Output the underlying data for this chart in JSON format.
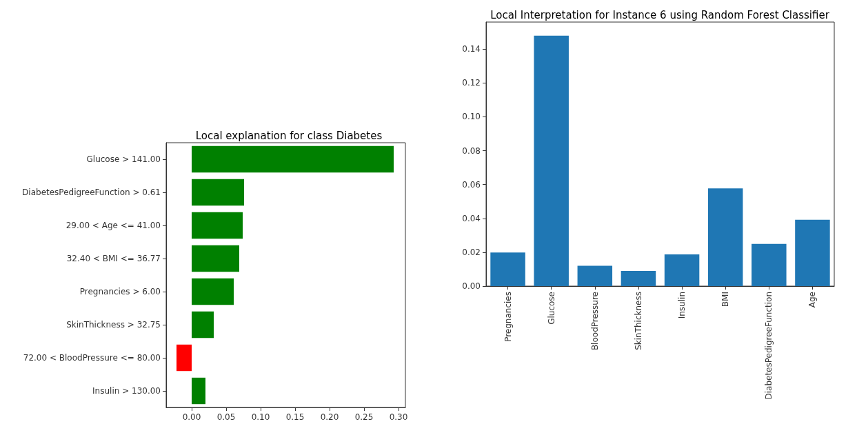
{
  "chart_data": [
    {
      "type": "bar",
      "orientation": "horizontal",
      "title": "Local explanation for class Diabetes",
      "categories": [
        "Glucose > 141.00",
        "DiabetesPedigreeFunction > 0.61",
        "29.00 < Age <= 41.00",
        "32.40 < BMI <= 36.77",
        "Pregnancies > 6.00",
        "SkinThickness > 32.75",
        "72.00 < BloodPressure <= 80.00",
        "Insulin > 130.00"
      ],
      "values": [
        0.293,
        0.076,
        0.074,
        0.069,
        0.061,
        0.032,
        -0.022,
        0.02
      ],
      "colors": [
        "#008000",
        "#008000",
        "#008000",
        "#008000",
        "#008000",
        "#008000",
        "#ff0000",
        "#008000"
      ],
      "xlim": [
        -0.037,
        0.31
      ],
      "xticks": [
        {
          "value": 0,
          "label": "0.00"
        },
        {
          "value": 0.05,
          "label": "0.05"
        },
        {
          "value": 0.1,
          "label": "0.10"
        },
        {
          "value": 0.15,
          "label": "0.15"
        },
        {
          "value": 0.2,
          "label": "0.20"
        },
        {
          "value": 0.25,
          "label": "0.25"
        },
        {
          "value": 0.3,
          "label": "0.30"
        }
      ],
      "grid": false
    },
    {
      "type": "bar",
      "title": "Local Interpretation for Instance 6 using Random Forest Classifier",
      "categories": [
        "Pregnancies",
        "Glucose",
        "BloodPressure",
        "SkinThickness",
        "Insulin",
        "BMI",
        "DiabetesPedigreeFunction",
        "Age"
      ],
      "values": [
        0.0199,
        0.148,
        0.012,
        0.009,
        0.0187,
        0.0577,
        0.0249,
        0.0392
      ],
      "color": "#1f77b4",
      "ylim": [
        0,
        0.156
      ],
      "yticks": [
        {
          "value": 0,
          "label": "0.00"
        },
        {
          "value": 0.02,
          "label": "0.02"
        },
        {
          "value": 0.04,
          "label": "0.04"
        },
        {
          "value": 0.06,
          "label": "0.06"
        },
        {
          "value": 0.08,
          "label": "0.08"
        },
        {
          "value": 0.1,
          "label": "0.10"
        },
        {
          "value": 0.12,
          "label": "0.12"
        },
        {
          "value": 0.14,
          "label": "0.14"
        }
      ],
      "grid": false
    }
  ]
}
